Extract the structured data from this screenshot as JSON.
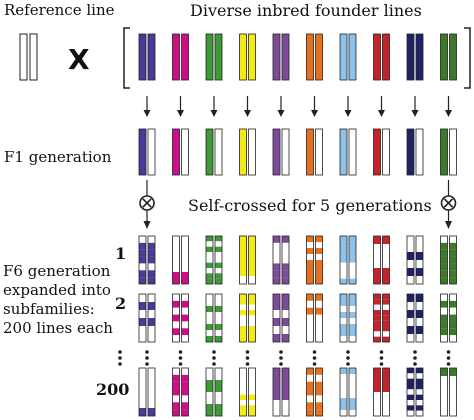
{
  "labels": {
    "reference_line": "Reference line",
    "cross_symbol": "X",
    "founder_title": "Diverse inbred founder lines",
    "f1": "F1 generation",
    "self_crossed": "Self-crossed for 5 generations",
    "self_symbol": "⊗",
    "f6_line1": "F6 generation",
    "f6_line2": "expanded into",
    "f6_line3": "subfamilies:",
    "f6_line4": "200 lines each",
    "row1": "1",
    "row2": "2",
    "row3": "200"
  },
  "founder_colors": [
    "#4b3a97",
    "#cc0f86",
    "#3e9a36",
    "#f3ea18",
    "#7e4a9a",
    "#e7701e",
    "#8cc2ea",
    "#c4232b",
    "#1f2366",
    "#3c7a2a"
  ],
  "colors": {
    "reference_fill": "#ffffff",
    "outline": "#222222",
    "text": "#111111"
  }
}
